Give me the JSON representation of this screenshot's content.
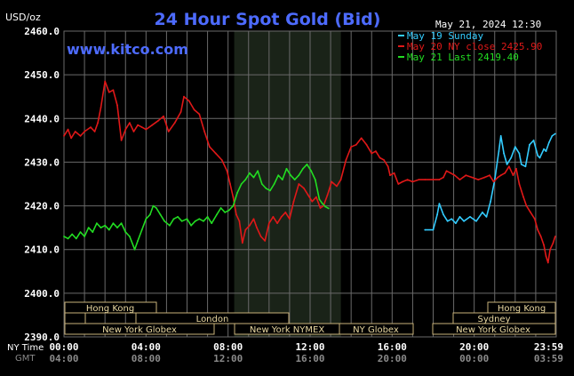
{
  "header": {
    "title": "24 Hour Spot Gold (Bid)",
    "unit": "USD/oz",
    "timestamp": "May 21, 2024 12:30",
    "site": "www.kitco.com"
  },
  "colors": {
    "background": "#000000",
    "title": "#4d6bff",
    "site": "#4d6bff",
    "grid": "#6a6a6a",
    "axis_text": "#ffffff",
    "gmt_text": "#8a8a8a",
    "nymex_shade": "#1a2318",
    "session_fill": "#000000",
    "session_border": "#c9b27a",
    "session_text": "#e8d7a0",
    "may19": "#33ccff",
    "may20": "#e01818",
    "may21": "#22dd22"
  },
  "legend": [
    {
      "key": "may19",
      "label": "May 19 Sunday"
    },
    {
      "key": "may20",
      "label": "May 20 NY close 2425.90"
    },
    {
      "key": "may21",
      "label": "May 21 Last 2419.40"
    }
  ],
  "axis": {
    "row_labels": {
      "ny": "NY Time",
      "gmt": "GMT"
    },
    "ny_ticks": [
      "00:00",
      "04:00",
      "08:00",
      "12:00",
      "16:00",
      "20:00",
      "23:59"
    ],
    "gmt_ticks": [
      "04:00",
      "08:00",
      "12:00",
      "16:00",
      "20:00",
      "00:00",
      "03:59"
    ]
  },
  "sessions": {
    "hong_kong": "Hong Kong",
    "london": "London",
    "new_york_globex": "New York Globex",
    "new_york_nymex": "New York NYMEX",
    "ny_globex": "NY Globex",
    "sydney": "Sydney"
  },
  "chart_data": {
    "type": "line",
    "title": "24 Hour Spot Gold (Bid)",
    "ylabel": "USD/oz",
    "xlabel": "NY Time",
    "ylim": [
      2390,
      2460
    ],
    "y_ticks": [
      "2460.0",
      "2450.0",
      "2440.0",
      "2430.0",
      "2420.0",
      "2410.0",
      "2400.0",
      "2390.0"
    ],
    "xlim_hours": [
      0,
      24
    ],
    "grid": true,
    "legend_position": "top-right",
    "shaded_region_hours": [
      8.3,
      13.5
    ],
    "series": [
      {
        "name": "May 19 Sunday",
        "color_key": "may19",
        "points": [
          [
            17.6,
            2414.5
          ],
          [
            18.0,
            2414.5
          ],
          [
            18.2,
            2418.0
          ],
          [
            18.3,
            2420.5
          ],
          [
            18.5,
            2418.0
          ],
          [
            18.7,
            2416.5
          ],
          [
            18.9,
            2417.0
          ],
          [
            19.1,
            2416.0
          ],
          [
            19.3,
            2417.5
          ],
          [
            19.5,
            2416.5
          ],
          [
            19.8,
            2417.5
          ],
          [
            20.1,
            2416.5
          ],
          [
            20.4,
            2418.5
          ],
          [
            20.6,
            2417.5
          ],
          [
            20.8,
            2421.0
          ],
          [
            21.0,
            2426.0
          ],
          [
            21.2,
            2432.5
          ],
          [
            21.3,
            2436.0
          ],
          [
            21.45,
            2432.0
          ],
          [
            21.6,
            2429.5
          ],
          [
            21.8,
            2431.0
          ],
          [
            22.0,
            2433.5
          ],
          [
            22.2,
            2432.0
          ],
          [
            22.3,
            2429.5
          ],
          [
            22.5,
            2429.0
          ],
          [
            22.7,
            2434.0
          ],
          [
            22.9,
            2435.0
          ],
          [
            23.1,
            2431.5
          ],
          [
            23.2,
            2431.0
          ],
          [
            23.4,
            2433.0
          ],
          [
            23.5,
            2432.5
          ],
          [
            23.65,
            2434.5
          ],
          [
            23.8,
            2436.0
          ],
          [
            23.95,
            2436.5
          ]
        ]
      },
      {
        "name": "May 20 NY close 2425.90",
        "color_key": "may20",
        "points": [
          [
            0.0,
            2436.0
          ],
          [
            0.2,
            2437.5
          ],
          [
            0.35,
            2435.5
          ],
          [
            0.55,
            2437.0
          ],
          [
            0.8,
            2436.0
          ],
          [
            1.0,
            2437.0
          ],
          [
            1.3,
            2438.0
          ],
          [
            1.5,
            2437.0
          ],
          [
            1.65,
            2439.0
          ],
          [
            1.8,
            2442.5
          ],
          [
            2.0,
            2448.5
          ],
          [
            2.2,
            2446.0
          ],
          [
            2.4,
            2446.5
          ],
          [
            2.6,
            2443.0
          ],
          [
            2.8,
            2435.0
          ],
          [
            3.0,
            2437.5
          ],
          [
            3.2,
            2439.0
          ],
          [
            3.4,
            2437.0
          ],
          [
            3.6,
            2438.5
          ],
          [
            3.8,
            2438.0
          ],
          [
            4.0,
            2437.5
          ],
          [
            4.3,
            2438.5
          ],
          [
            4.6,
            2439.5
          ],
          [
            4.85,
            2440.5
          ],
          [
            5.1,
            2437.0
          ],
          [
            5.4,
            2439.0
          ],
          [
            5.7,
            2441.5
          ],
          [
            5.85,
            2445.0
          ],
          [
            6.1,
            2444.0
          ],
          [
            6.35,
            2442.0
          ],
          [
            6.6,
            2441.0
          ],
          [
            6.85,
            2437.0
          ],
          [
            7.1,
            2433.5
          ],
          [
            7.4,
            2432.0
          ],
          [
            7.7,
            2430.5
          ],
          [
            7.95,
            2428.0
          ],
          [
            8.1,
            2425.0
          ],
          [
            8.25,
            2422.0
          ],
          [
            8.4,
            2418.0
          ],
          [
            8.55,
            2416.5
          ],
          [
            8.7,
            2411.5
          ],
          [
            8.85,
            2414.5
          ],
          [
            9.05,
            2415.5
          ],
          [
            9.25,
            2417.0
          ],
          [
            9.4,
            2415.0
          ],
          [
            9.6,
            2413.0
          ],
          [
            9.8,
            2412.0
          ],
          [
            10.0,
            2416.0
          ],
          [
            10.2,
            2417.5
          ],
          [
            10.4,
            2416.0
          ],
          [
            10.6,
            2417.5
          ],
          [
            10.8,
            2418.5
          ],
          [
            11.0,
            2417.0
          ],
          [
            11.2,
            2421.0
          ],
          [
            11.45,
            2425.0
          ],
          [
            11.7,
            2424.0
          ],
          [
            11.9,
            2422.5
          ],
          [
            12.1,
            2421.0
          ],
          [
            12.3,
            2422.0
          ],
          [
            12.5,
            2419.5
          ],
          [
            12.65,
            2420.0
          ],
          [
            12.85,
            2422.5
          ],
          [
            13.05,
            2425.5
          ],
          [
            13.3,
            2424.5
          ],
          [
            13.5,
            2426.0
          ],
          [
            13.75,
            2430.5
          ],
          [
            14.0,
            2433.5
          ],
          [
            14.25,
            2434.0
          ],
          [
            14.5,
            2435.5
          ],
          [
            14.75,
            2434.0
          ],
          [
            15.0,
            2432.0
          ],
          [
            15.2,
            2432.5
          ],
          [
            15.4,
            2431.0
          ],
          [
            15.6,
            2430.5
          ],
          [
            15.8,
            2429.0
          ],
          [
            15.9,
            2427.0
          ],
          [
            16.1,
            2427.5
          ],
          [
            16.3,
            2425.0
          ],
          [
            16.5,
            2425.5
          ],
          [
            16.75,
            2426.0
          ],
          [
            17.0,
            2425.5
          ],
          [
            17.3,
            2426.0
          ],
          [
            17.6,
            2426.0
          ],
          [
            18.0,
            2426.0
          ],
          [
            18.3,
            2426.0
          ],
          [
            18.5,
            2426.5
          ],
          [
            18.65,
            2428.0
          ],
          [
            18.85,
            2427.5
          ],
          [
            19.05,
            2427.0
          ],
          [
            19.3,
            2426.0
          ],
          [
            19.6,
            2427.0
          ],
          [
            19.9,
            2426.5
          ],
          [
            20.2,
            2426.0
          ],
          [
            20.5,
            2426.5
          ],
          [
            20.75,
            2427.0
          ],
          [
            20.95,
            2425.5
          ],
          [
            21.15,
            2426.5
          ],
          [
            21.3,
            2427.0
          ],
          [
            21.5,
            2427.5
          ],
          [
            21.7,
            2429.0
          ],
          [
            21.9,
            2427.0
          ],
          [
            22.05,
            2428.5
          ],
          [
            22.2,
            2425.0
          ],
          [
            22.4,
            2422.0
          ],
          [
            22.55,
            2420.0
          ],
          [
            22.75,
            2418.5
          ],
          [
            22.95,
            2417.0
          ],
          [
            23.1,
            2414.5
          ],
          [
            23.25,
            2413.0
          ],
          [
            23.4,
            2411.0
          ],
          [
            23.5,
            2408.5
          ],
          [
            23.6,
            2407.0
          ],
          [
            23.7,
            2410.0
          ],
          [
            23.85,
            2411.5
          ],
          [
            23.95,
            2413.0
          ]
        ]
      },
      {
        "name": "May 21 Last 2419.40",
        "color_key": "may21",
        "points": [
          [
            0.0,
            2413.0
          ],
          [
            0.2,
            2412.5
          ],
          [
            0.4,
            2413.5
          ],
          [
            0.6,
            2412.5
          ],
          [
            0.8,
            2414.0
          ],
          [
            1.0,
            2413.0
          ],
          [
            1.2,
            2415.0
          ],
          [
            1.4,
            2414.0
          ],
          [
            1.6,
            2416.0
          ],
          [
            1.8,
            2415.0
          ],
          [
            2.0,
            2415.5
          ],
          [
            2.2,
            2414.5
          ],
          [
            2.4,
            2416.0
          ],
          [
            2.6,
            2415.0
          ],
          [
            2.8,
            2416.0
          ],
          [
            3.0,
            2414.0
          ],
          [
            3.2,
            2413.0
          ],
          [
            3.45,
            2410.0
          ],
          [
            3.6,
            2412.0
          ],
          [
            3.8,
            2414.5
          ],
          [
            4.0,
            2417.0
          ],
          [
            4.2,
            2418.0
          ],
          [
            4.35,
            2420.0
          ],
          [
            4.5,
            2419.5
          ],
          [
            4.7,
            2418.0
          ],
          [
            4.9,
            2416.5
          ],
          [
            5.15,
            2415.5
          ],
          [
            5.35,
            2417.0
          ],
          [
            5.55,
            2417.5
          ],
          [
            5.75,
            2416.5
          ],
          [
            6.0,
            2417.0
          ],
          [
            6.2,
            2415.5
          ],
          [
            6.4,
            2416.5
          ],
          [
            6.6,
            2417.0
          ],
          [
            6.8,
            2416.5
          ],
          [
            7.0,
            2417.5
          ],
          [
            7.2,
            2416.0
          ],
          [
            7.45,
            2418.0
          ],
          [
            7.65,
            2419.5
          ],
          [
            7.85,
            2418.5
          ],
          [
            8.05,
            2419.0
          ],
          [
            8.25,
            2420.0
          ],
          [
            8.45,
            2423.0
          ],
          [
            8.65,
            2425.0
          ],
          [
            8.85,
            2426.0
          ],
          [
            9.05,
            2427.5
          ],
          [
            9.25,
            2426.5
          ],
          [
            9.45,
            2428.0
          ],
          [
            9.65,
            2425.0
          ],
          [
            9.85,
            2424.0
          ],
          [
            10.05,
            2423.5
          ],
          [
            10.25,
            2425.0
          ],
          [
            10.45,
            2427.0
          ],
          [
            10.65,
            2426.0
          ],
          [
            10.85,
            2428.5
          ],
          [
            11.05,
            2427.0
          ],
          [
            11.25,
            2426.0
          ],
          [
            11.45,
            2427.0
          ],
          [
            11.65,
            2428.5
          ],
          [
            11.85,
            2429.5
          ],
          [
            12.05,
            2428.0
          ],
          [
            12.25,
            2426.0
          ],
          [
            12.45,
            2421.5
          ],
          [
            12.6,
            2420.5
          ],
          [
            12.75,
            2419.8
          ],
          [
            12.9,
            2419.4
          ]
        ]
      }
    ]
  }
}
